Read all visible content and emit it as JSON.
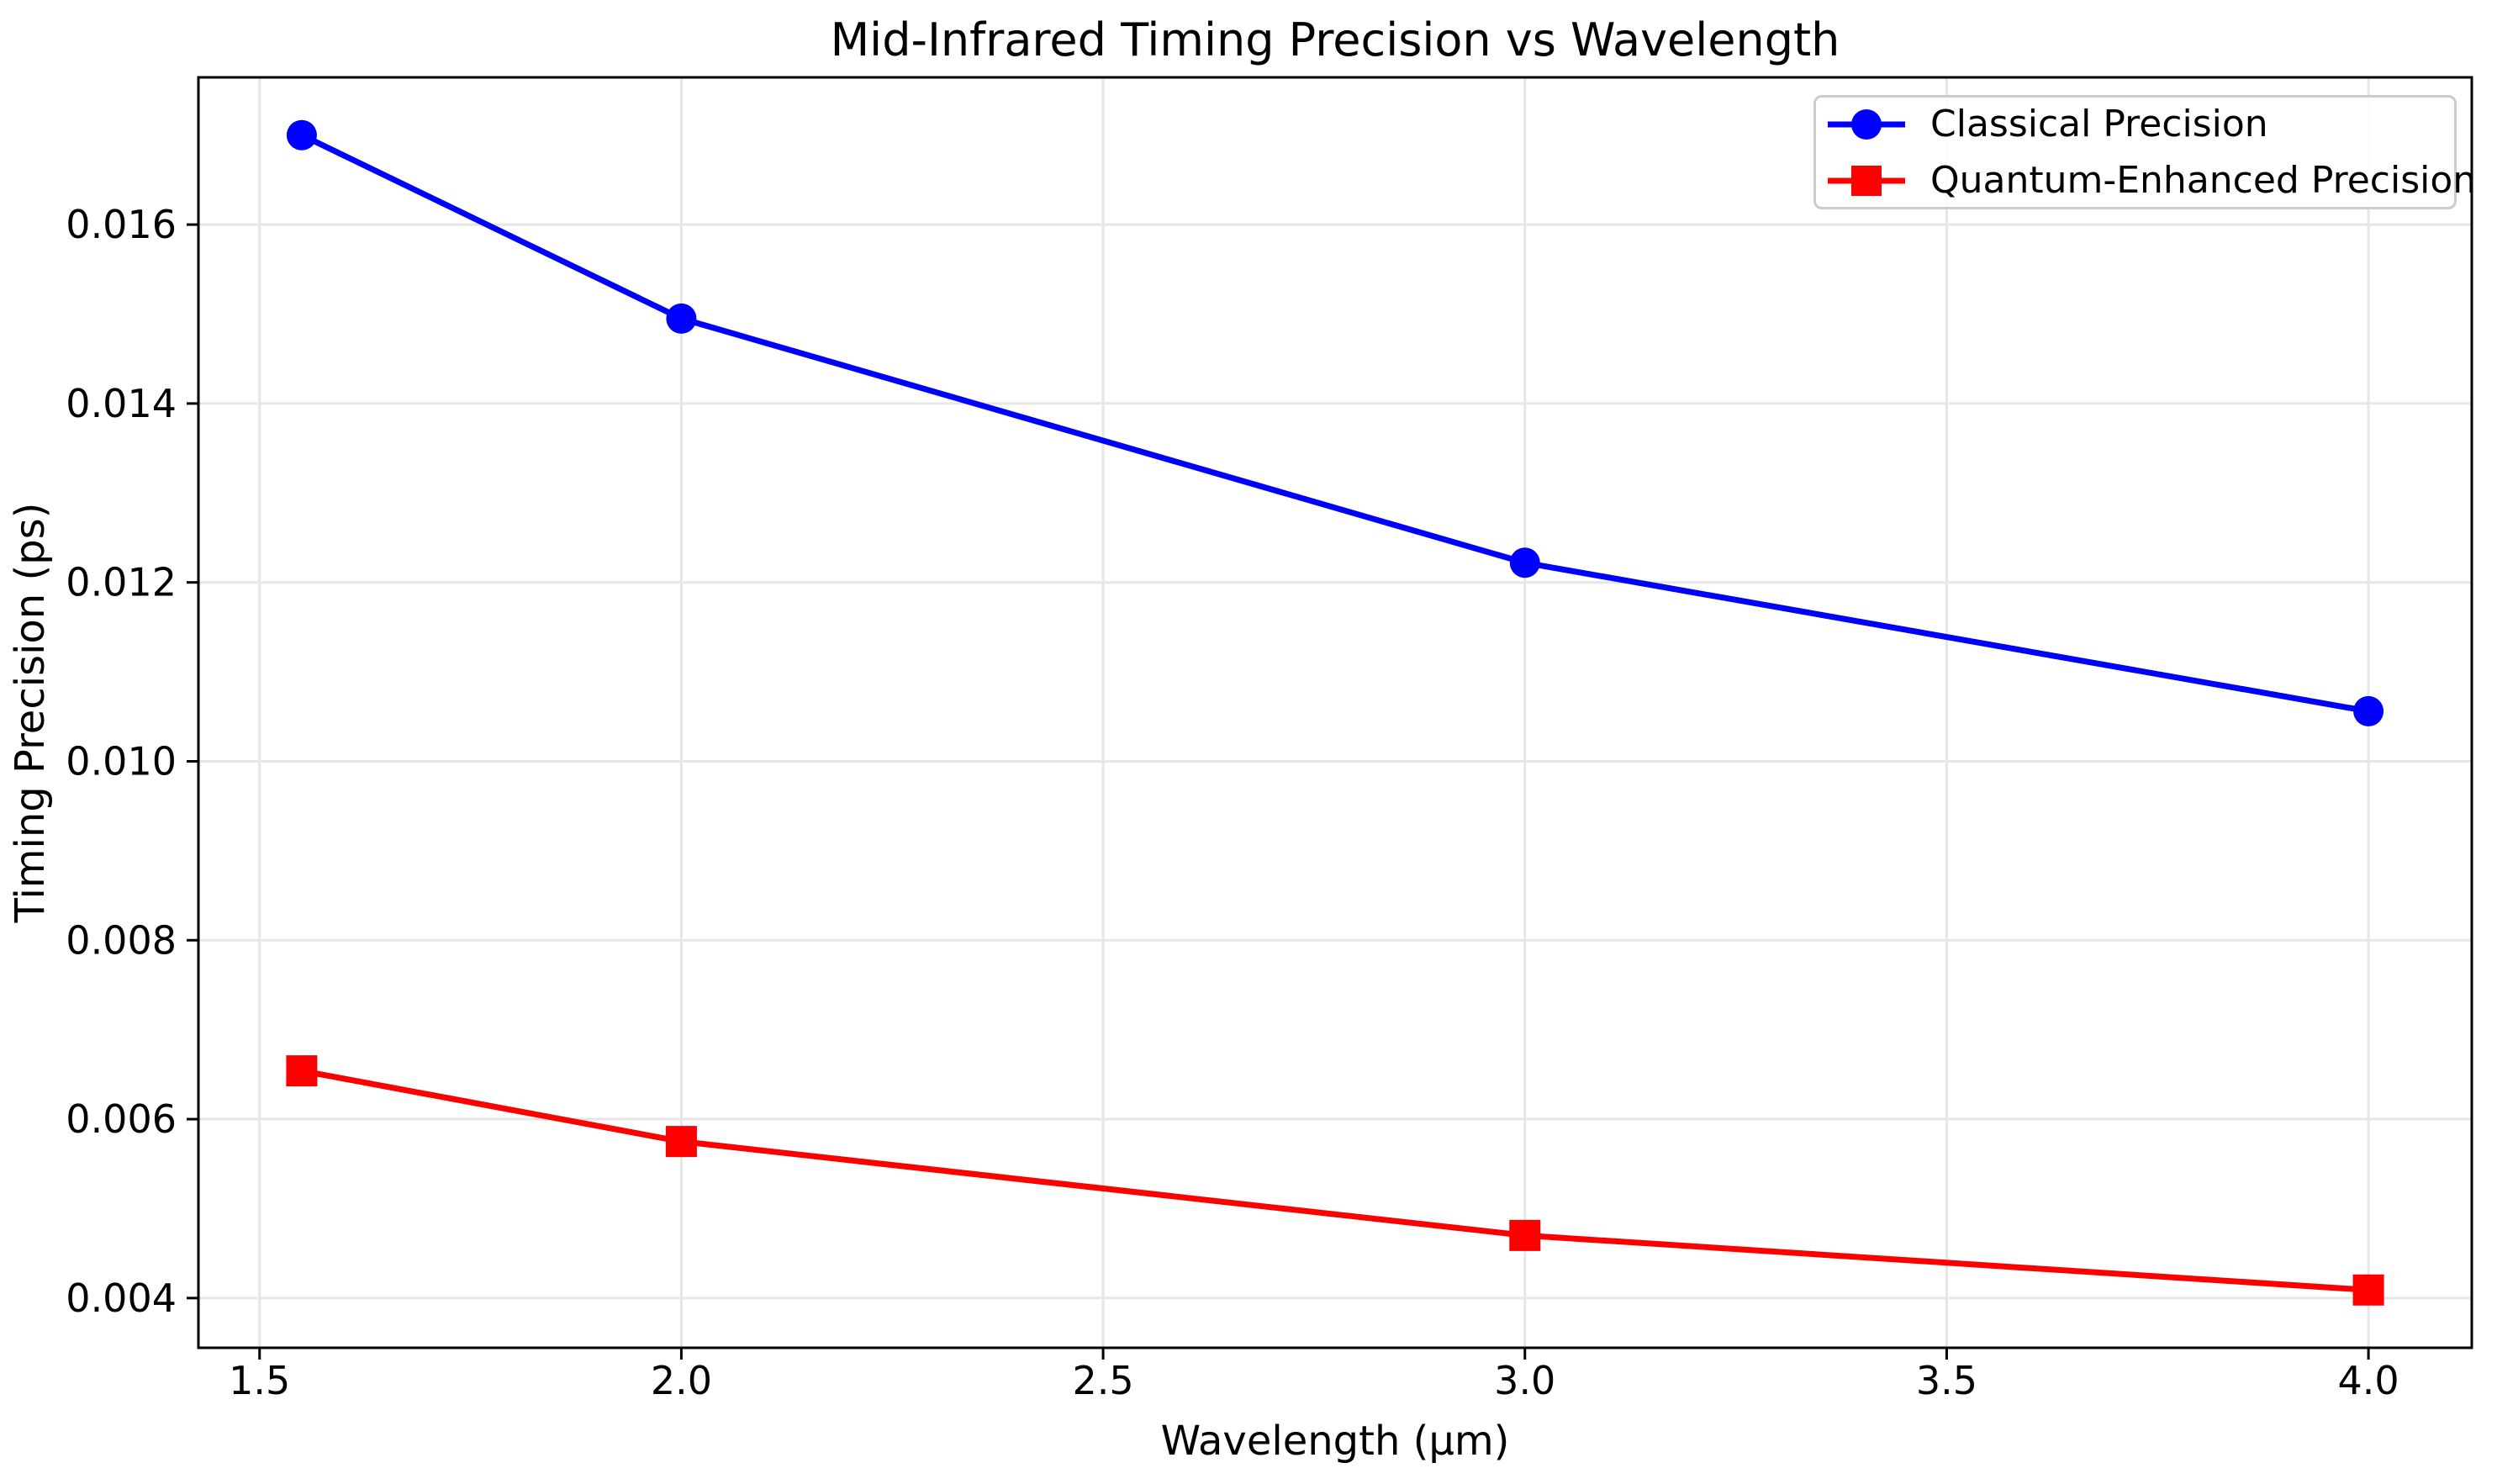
{
  "chart_data": {
    "type": "line",
    "title": "Mid-Infrared Timing Precision vs Wavelength",
    "xlabel": "Wavelength (μm)",
    "ylabel": "Timing Precision (ps)",
    "x": [
      1.55,
      2.0,
      3.0,
      4.0
    ],
    "series": [
      {
        "id": "classical",
        "name": "Classical Precision",
        "color": "#0000ff",
        "marker": "circle",
        "values": [
          0.017,
          0.01495,
          0.01222,
          0.01056
        ]
      },
      {
        "id": "quantum",
        "name": "Quantum-Enhanced Precision",
        "color": "#ff0000",
        "marker": "square",
        "values": [
          0.00654,
          0.00575,
          0.0047,
          0.00409
        ]
      }
    ],
    "xlim": [
      1.4275,
      4.1225
    ],
    "ylim": [
      0.003444,
      0.017646
    ],
    "xticks": [
      1.5,
      2.0,
      2.5,
      3.0,
      3.5,
      4.0
    ],
    "xtick_labels": [
      "1.5",
      "2.0",
      "2.5",
      "3.0",
      "3.5",
      "4.0"
    ],
    "yticks": [
      0.004,
      0.006,
      0.008,
      0.01,
      0.012,
      0.014,
      0.016
    ],
    "ytick_labels": [
      "0.004",
      "0.006",
      "0.008",
      "0.010",
      "0.012",
      "0.014",
      "0.016"
    ],
    "grid": true,
    "legend_position": "upper right"
  },
  "colors": {
    "background": "#ffffff",
    "grid": "#e6e6e6",
    "axis": "#000000",
    "tick_text": "#000000",
    "legend_border": "#cccccc",
    "classical": "#0000ff",
    "quantum": "#ff0000"
  }
}
